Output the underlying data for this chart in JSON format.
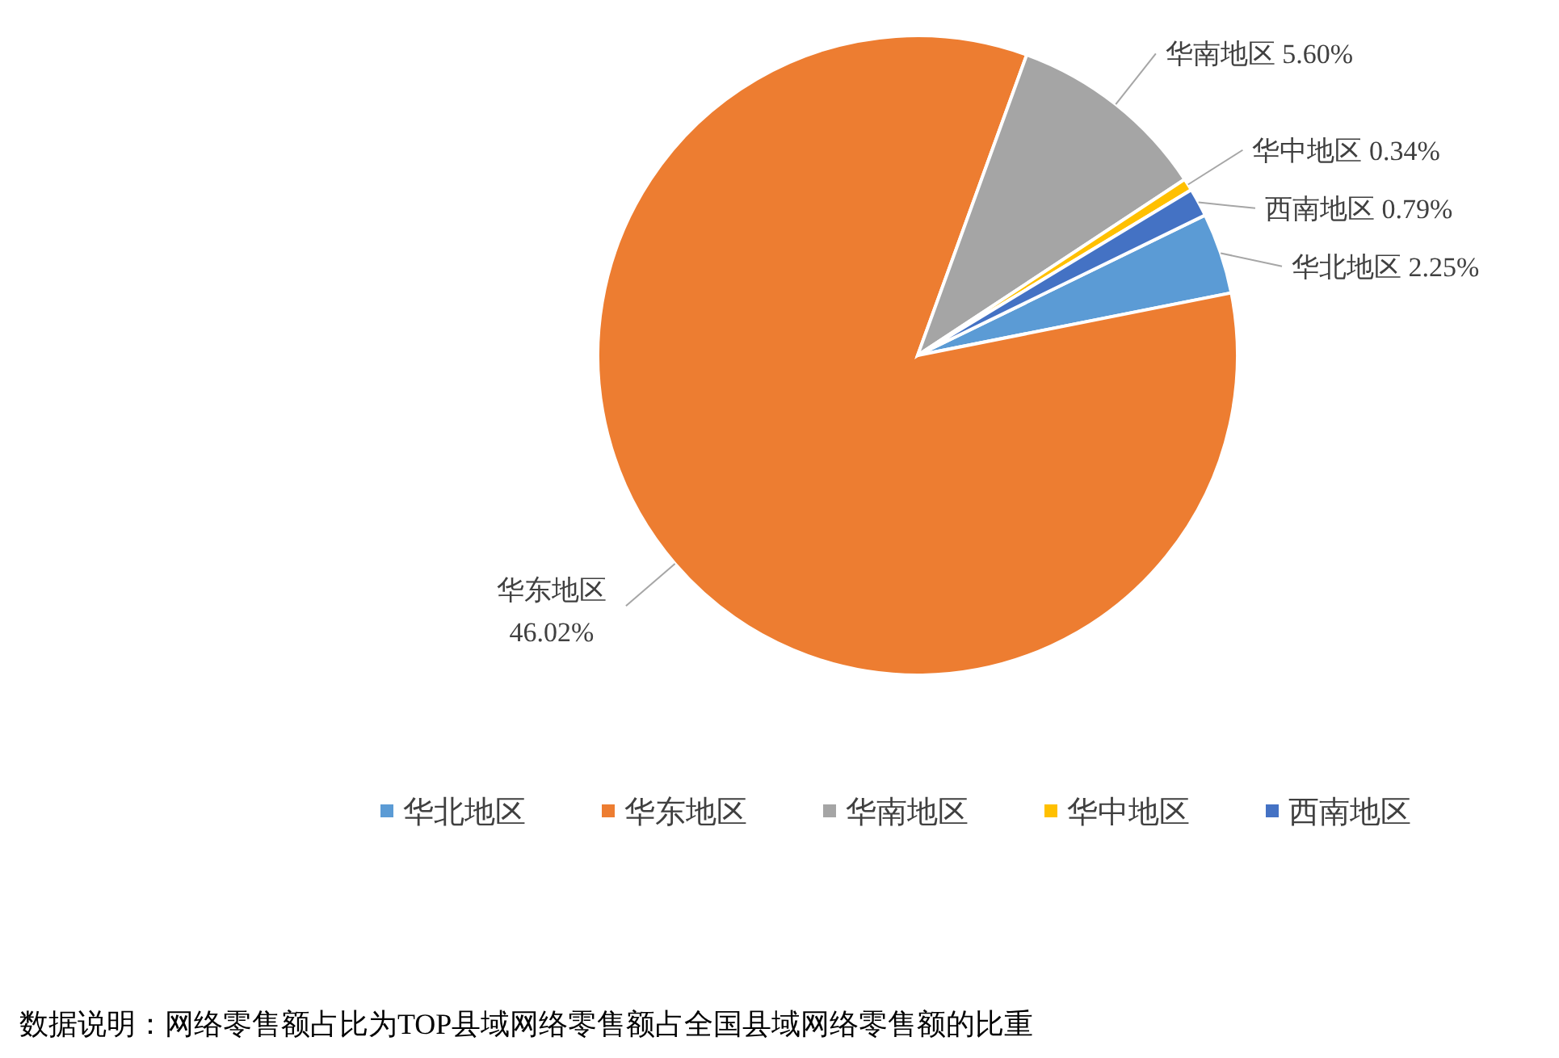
{
  "chart_data": {
    "type": "pie",
    "categories": [
      "华北地区",
      "华东地区",
      "华南地区",
      "华中地区",
      "西南地区"
    ],
    "values": [
      2.25,
      46.02,
      5.6,
      0.34,
      0.79
    ],
    "value_labels": [
      "2.25%",
      "46.02%",
      "5.60%",
      "0.34%",
      "0.79%"
    ],
    "colors": [
      "#5b9bd5",
      "#ed7d31",
      "#a5a5a5",
      "#ffc000",
      "#4472c4"
    ],
    "legend": "bottom",
    "annotations": [
      "数据说明：网络零售额占比为TOP县域网络零售额占全国县域网络零售额的比重"
    ]
  }
}
